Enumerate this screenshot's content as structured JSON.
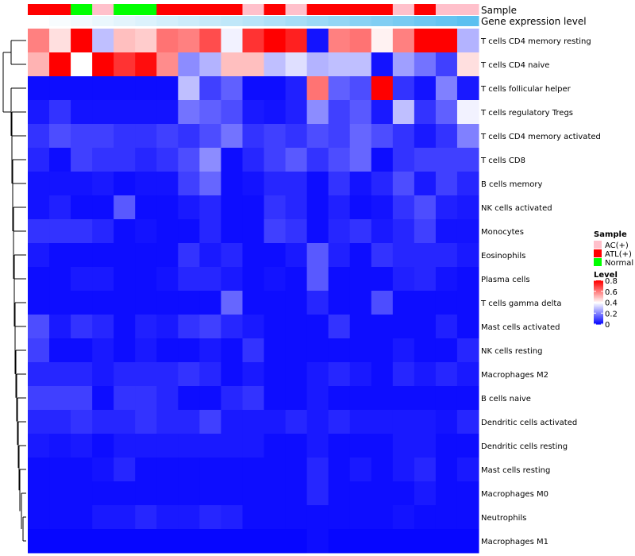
{
  "chart_data": {
    "type": "heatmap",
    "title": "",
    "annotation_tracks": [
      "Sample",
      "Gene expression level"
    ],
    "sample_colors": {
      "AC(+)": "#ffc0cb",
      "ATL(+)": "#ff0000",
      "Normal": "#00ff00"
    },
    "samples": [
      "ATL(+)",
      "ATL(+)",
      "Normal",
      "AC(+)",
      "Normal",
      "Normal",
      "ATL(+)",
      "ATL(+)",
      "ATL(+)",
      "ATL(+)",
      "AC(+)",
      "ATL(+)",
      "AC(+)",
      "ATL(+)",
      "ATL(+)",
      "ATL(+)",
      "ATL(+)",
      "AC(+)",
      "ATL(+)",
      "AC(+)",
      "AC(+)"
    ],
    "gene_expression_gradient": [
      "#ffffff",
      "#b8e4f8",
      "#5cc0f0"
    ],
    "rows": [
      "T cells CD4 memory resting",
      "T cells CD4 naive",
      "T cells follicular helper",
      "T cells regulatory  Tregs",
      "T cells CD4 memory activated",
      "T cells CD8",
      "B cells memory",
      "NK cells activated",
      "Monocytes",
      "Eosinophils",
      "Plasma cells",
      "T cells gamma delta",
      "Mast cells activated",
      "NK cells resting",
      "Macrophages M2",
      "B cells naive",
      "Dendritic cells activated",
      "Dendritic cells resting",
      "Mast cells resting",
      "Macrophages M0",
      "Neutrophils",
      "Macrophages M1"
    ],
    "values": [
      [
        0.6,
        0.45,
        0.85,
        0.3,
        0.5,
        0.48,
        0.62,
        0.6,
        0.68,
        0.38,
        0.72,
        0.85,
        0.75,
        0.03,
        0.6,
        0.62,
        0.42,
        0.6,
        0.85,
        0.85,
        0.28
      ],
      [
        0.52,
        0.85,
        0.4,
        0.85,
        0.72,
        0.78,
        0.58,
        0.22,
        0.28,
        0.5,
        0.5,
        0.3,
        0.35,
        0.28,
        0.3,
        0.3,
        0.03,
        0.25,
        0.18,
        0.1,
        0.45
      ],
      [
        0.02,
        0.02,
        0.02,
        0.02,
        0.02,
        0.02,
        0.02,
        0.3,
        0.1,
        0.15,
        0.02,
        0.02,
        0.05,
        0.62,
        0.15,
        0.12,
        0.8,
        0.08,
        0.03,
        0.2,
        0.04
      ],
      [
        0.04,
        0.08,
        0.03,
        0.03,
        0.03,
        0.03,
        0.03,
        0.18,
        0.15,
        0.12,
        0.04,
        0.03,
        0.05,
        0.22,
        0.1,
        0.14,
        0.04,
        0.3,
        0.08,
        0.15,
        0.38
      ],
      [
        0.08,
        0.12,
        0.1,
        0.1,
        0.08,
        0.08,
        0.1,
        0.08,
        0.12,
        0.18,
        0.08,
        0.1,
        0.08,
        0.12,
        0.1,
        0.16,
        0.12,
        0.08,
        0.04,
        0.08,
        0.2
      ],
      [
        0.06,
        0.02,
        0.1,
        0.08,
        0.08,
        0.06,
        0.08,
        0.12,
        0.22,
        0.02,
        0.06,
        0.1,
        0.14,
        0.08,
        0.12,
        0.16,
        0.02,
        0.08,
        0.1,
        0.1,
        0.1
      ],
      [
        0.03,
        0.03,
        0.03,
        0.04,
        0.02,
        0.03,
        0.03,
        0.1,
        0.16,
        0.02,
        0.03,
        0.06,
        0.06,
        0.02,
        0.08,
        0.03,
        0.06,
        0.12,
        0.04,
        0.1,
        0.06
      ],
      [
        0.03,
        0.05,
        0.02,
        0.02,
        0.14,
        0.02,
        0.02,
        0.04,
        0.06,
        0.02,
        0.02,
        0.08,
        0.06,
        0.02,
        0.05,
        0.02,
        0.03,
        0.08,
        0.12,
        0.05,
        0.04
      ],
      [
        0.08,
        0.08,
        0.08,
        0.06,
        0.02,
        0.03,
        0.02,
        0.02,
        0.06,
        0.02,
        0.02,
        0.1,
        0.08,
        0.02,
        0.06,
        0.08,
        0.04,
        0.06,
        0.1,
        0.03,
        0.03
      ],
      [
        0.04,
        0.02,
        0.02,
        0.02,
        0.02,
        0.02,
        0.02,
        0.08,
        0.04,
        0.06,
        0.02,
        0.02,
        0.04,
        0.14,
        0.05,
        0.02,
        0.08,
        0.06,
        0.06,
        0.06,
        0.04
      ],
      [
        0.02,
        0.02,
        0.04,
        0.04,
        0.02,
        0.02,
        0.03,
        0.06,
        0.06,
        0.04,
        0.02,
        0.03,
        0.02,
        0.14,
        0.02,
        0.02,
        0.02,
        0.05,
        0.06,
        0.03,
        0.02
      ],
      [
        0.02,
        0.02,
        0.02,
        0.02,
        0.02,
        0.02,
        0.02,
        0.02,
        0.02,
        0.16,
        0.02,
        0.02,
        0.02,
        0.06,
        0.02,
        0.02,
        0.12,
        0.02,
        0.02,
        0.02,
        0.02
      ],
      [
        0.12,
        0.04,
        0.08,
        0.06,
        0.02,
        0.05,
        0.04,
        0.08,
        0.1,
        0.06,
        0.04,
        0.02,
        0.02,
        0.02,
        0.08,
        0.02,
        0.02,
        0.02,
        0.02,
        0.05,
        0.02
      ],
      [
        0.1,
        0.02,
        0.02,
        0.04,
        0.02,
        0.04,
        0.02,
        0.02,
        0.04,
        0.02,
        0.08,
        0.02,
        0.02,
        0.02,
        0.02,
        0.02,
        0.02,
        0.04,
        0.02,
        0.02,
        0.06
      ],
      [
        0.06,
        0.06,
        0.06,
        0.04,
        0.06,
        0.06,
        0.06,
        0.08,
        0.06,
        0.02,
        0.04,
        0.02,
        0.02,
        0.04,
        0.06,
        0.04,
        0.02,
        0.06,
        0.04,
        0.06,
        0.04
      ],
      [
        0.1,
        0.1,
        0.1,
        0.02,
        0.08,
        0.08,
        0.06,
        0.02,
        0.02,
        0.06,
        0.08,
        0.02,
        0.02,
        0.04,
        0.02,
        0.02,
        0.02,
        0.02,
        0.02,
        0.02,
        0.02
      ],
      [
        0.06,
        0.06,
        0.08,
        0.06,
        0.06,
        0.08,
        0.06,
        0.06,
        0.1,
        0.04,
        0.04,
        0.04,
        0.06,
        0.04,
        0.06,
        0.04,
        0.04,
        0.04,
        0.04,
        0.03,
        0.06
      ],
      [
        0.04,
        0.03,
        0.04,
        0.02,
        0.04,
        0.04,
        0.04,
        0.04,
        0.04,
        0.04,
        0.04,
        0.02,
        0.02,
        0.04,
        0.02,
        0.02,
        0.02,
        0.04,
        0.04,
        0.02,
        0.02
      ],
      [
        0.02,
        0.02,
        0.02,
        0.03,
        0.06,
        0.02,
        0.02,
        0.02,
        0.02,
        0.02,
        0.02,
        0.02,
        0.02,
        0.06,
        0.02,
        0.04,
        0.02,
        0.04,
        0.06,
        0.02,
        0.04
      ],
      [
        0.02,
        0.02,
        0.02,
        0.02,
        0.02,
        0.02,
        0.02,
        0.02,
        0.02,
        0.02,
        0.02,
        0.02,
        0.02,
        0.06,
        0.02,
        0.02,
        0.02,
        0.02,
        0.04,
        0.02,
        0.02
      ],
      [
        0.02,
        0.02,
        0.02,
        0.04,
        0.04,
        0.06,
        0.04,
        0.04,
        0.06,
        0.05,
        0.02,
        0.02,
        0.02,
        0.02,
        0.02,
        0.02,
        0.02,
        0.03,
        0.02,
        0.02,
        0.02
      ],
      [
        0.01,
        0.01,
        0.01,
        0.01,
        0.01,
        0.01,
        0.01,
        0.01,
        0.01,
        0.01,
        0.01,
        0.01,
        0.01,
        0.02,
        0.01,
        0.01,
        0.01,
        0.01,
        0.01,
        0.01,
        0.01
      ]
    ],
    "legend_sample": {
      "title": "Sample",
      "entries": [
        "AC(+)",
        "ATL(+)",
        "Normal"
      ]
    },
    "legend_level": {
      "title": "Level",
      "range": [
        0,
        0.8
      ],
      "ticks": [
        "0.8",
        "0.6",
        "0.4",
        "0.2",
        "0"
      ],
      "colors": [
        "#0000ff",
        "#ffffff",
        "#ff0000"
      ]
    }
  }
}
